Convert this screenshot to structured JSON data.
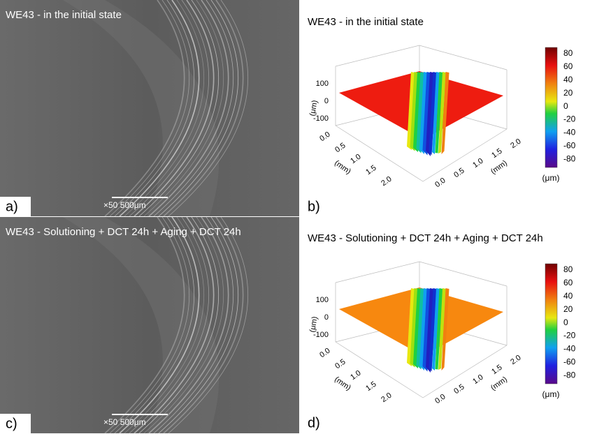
{
  "panels": [
    {
      "label": "a)",
      "title": "WE43 - in the initial state",
      "scale_bar": "×50 500μm"
    },
    {
      "label": "c)",
      "title": "WE43 - Solutioning + DCT 24h + Aging + DCT 24h",
      "scale_bar": "×50 500μm"
    }
  ],
  "profiles": [
    {
      "label": "b)",
      "title": "WE43 - in the initial state",
      "surface_color": "#ee1c10",
      "z_label": "(μm)",
      "z_ticks": [
        "100",
        "0",
        "-100"
      ],
      "x_label": "(mm)",
      "x_ticks": [
        "0.0",
        "0.5",
        "1.0",
        "1.5",
        "2.0"
      ],
      "y_label": "(mm)",
      "y_ticks": [
        "0.0",
        "0.5",
        "1.0",
        "1.5",
        "2.0"
      ],
      "colorbar": {
        "ticks": [
          "80",
          "60",
          "40",
          "20",
          "0",
          "-20",
          "-40",
          "-60",
          "-80"
        ],
        "unit": "(μm)"
      }
    },
    {
      "label": "d)",
      "title": "WE43 - Solutioning + DCT 24h + Aging + DCT 24h",
      "surface_color": "#f7880f",
      "z_label": "(μm)",
      "z_ticks": [
        "100",
        "0",
        "-100"
      ],
      "x_label": "(mm)",
      "x_ticks": [
        "0.0",
        "0.5",
        "1.0",
        "1.5",
        "2.0"
      ],
      "y_label": "(mm)",
      "y_ticks": [
        "0.0",
        "0.5",
        "1.0",
        "1.5",
        "2.0"
      ],
      "colorbar": {
        "ticks": [
          "80",
          "60",
          "40",
          "20",
          "0",
          "-20",
          "-40",
          "-60",
          "-80"
        ],
        "unit": "(μm)"
      }
    }
  ]
}
